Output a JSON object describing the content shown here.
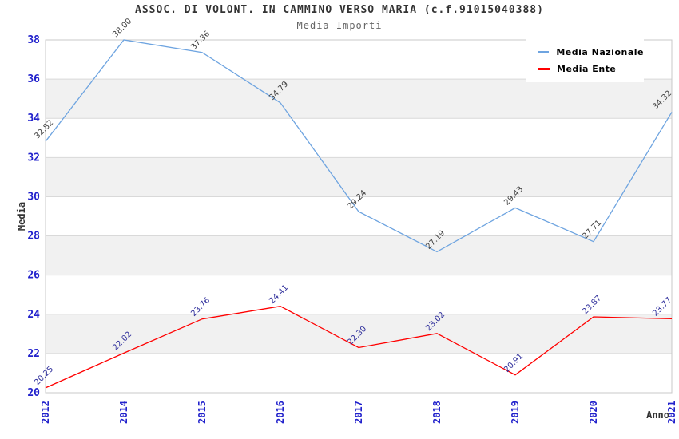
{
  "chart_data": {
    "type": "line",
    "title": "ASSOC. DI VOLONT. IN CAMMINO VERSO MARIA (c.f.91015040388)",
    "subtitle": "Media Importi",
    "xlabel": "Anno",
    "ylabel": "Media",
    "categories": [
      "2012",
      "2014",
      "2015",
      "2016",
      "2017",
      "2018",
      "2019",
      "2020",
      "2021"
    ],
    "series": [
      {
        "name": "Media Nazionale",
        "color": "#6EA4E0",
        "label_color": "#444444",
        "values": [
          32.82,
          38.0,
          37.36,
          34.79,
          29.24,
          27.19,
          29.43,
          27.71,
          34.32
        ]
      },
      {
        "name": "Media Ente",
        "color": "#FF0000",
        "label_color": "#30309C",
        "values": [
          20.25,
          22.02,
          23.76,
          24.41,
          22.3,
          23.02,
          20.91,
          23.87,
          23.77
        ]
      }
    ],
    "ylim": [
      20,
      38
    ],
    "yticks": [
      20,
      22,
      24,
      26,
      28,
      30,
      32,
      34,
      36,
      38
    ],
    "grid": true,
    "legend_position": "top-right",
    "colors": {
      "tick_label": "#2222CC",
      "axis_title": "#333333",
      "band": "#F1F1F1",
      "gridline": "#D9D9D9",
      "plot_border": "#C8C8C8",
      "background": "#FFFFFF"
    }
  }
}
